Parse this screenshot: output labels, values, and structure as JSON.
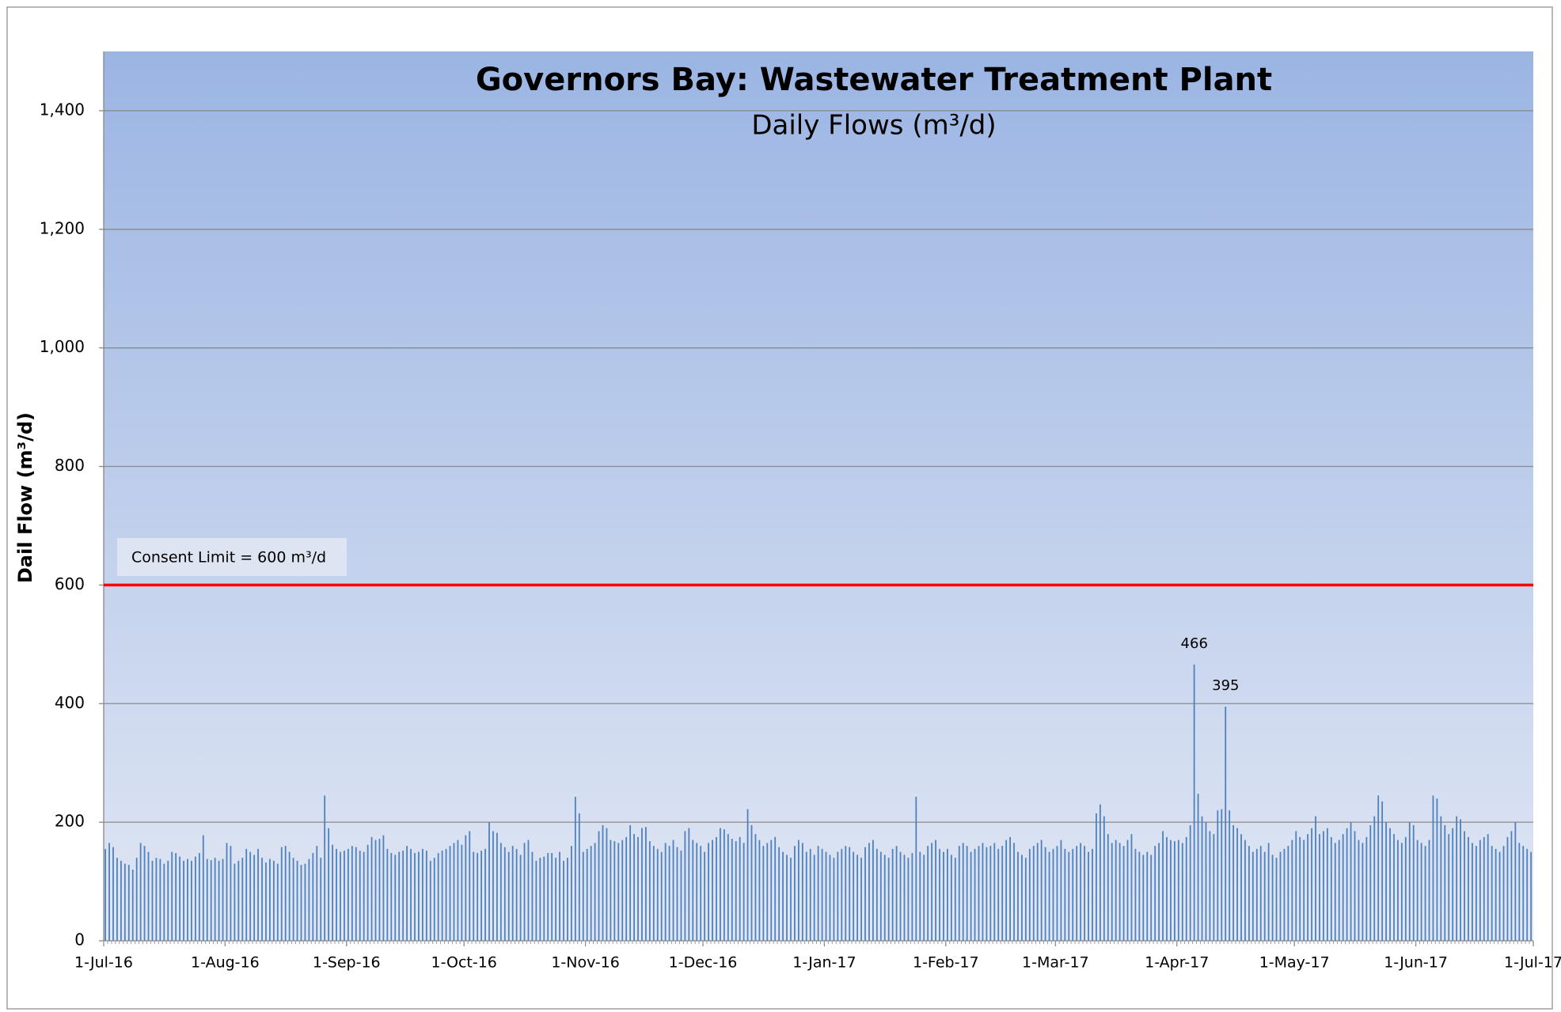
{
  "chart_data": {
    "type": "bar",
    "title": "Governors Bay: Wastewater Treatment Plant",
    "subtitle": "Daily Flows (m³/d)",
    "y_label": "Dail Flow (m³/d)",
    "color": "#4f81bd",
    "grid": true,
    "ylim": [
      0,
      1500
    ],
    "yticks": [
      0,
      200,
      400,
      600,
      800,
      {
        "value": 1000,
        "label": "1,000"
      },
      {
        "value": 1200,
        "label": "1,200"
      },
      {
        "value": 1400,
        "label": "1,400"
      }
    ],
    "xlim": [
      "2016-07-01",
      "2017-07-01"
    ],
    "xticks": [
      {
        "value": "2016-07-01",
        "label": "1-Jul-16"
      },
      {
        "value": "2016-08-01",
        "label": "1-Aug-16"
      },
      {
        "value": "2016-09-01",
        "label": "1-Sep-16"
      },
      {
        "value": "2016-10-01",
        "label": "1-Oct-16"
      },
      {
        "value": "2016-11-01",
        "label": "1-Nov-16"
      },
      {
        "value": "2016-12-01",
        "label": "1-Dec-16"
      },
      {
        "value": "2017-01-01",
        "label": "1-Jan-17"
      },
      {
        "value": "2017-02-01",
        "label": "1-Feb-17"
      },
      {
        "value": "2017-03-01",
        "label": "1-Mar-17"
      },
      {
        "value": "2017-04-01",
        "label": "1-Apr-17"
      },
      {
        "value": "2017-05-01",
        "label": "1-May-17"
      },
      {
        "value": "2017-06-01",
        "label": "1-Jun-17"
      },
      {
        "value": "2017-07-01",
        "label": "1-Jul-17"
      }
    ],
    "limit": {
      "value": 600,
      "label": "Consent Limit = 600 m³/d",
      "color": "#ff0000"
    },
    "x": [
      "2016-07-01",
      "2016-07-02",
      "2016-07-03",
      "2016-07-04",
      "2016-07-05",
      "2016-07-06",
      "2016-07-07",
      "2016-07-08",
      "2016-07-09",
      "2016-07-10",
      "2016-07-11",
      "2016-07-12",
      "2016-07-13",
      "2016-07-14",
      "2016-07-15",
      "2016-07-16",
      "2016-07-17",
      "2016-07-18",
      "2016-07-19",
      "2016-07-20",
      "2016-07-21",
      "2016-07-22",
      "2016-07-23",
      "2016-07-24",
      "2016-07-25",
      "2016-07-26",
      "2016-07-27",
      "2016-07-28",
      "2016-07-29",
      "2016-07-30",
      "2016-07-31",
      "2016-08-01",
      "2016-08-02",
      "2016-08-03",
      "2016-08-04",
      "2016-08-05",
      "2016-08-06",
      "2016-08-07",
      "2016-08-08",
      "2016-08-09",
      "2016-08-10",
      "2016-08-11",
      "2016-08-12",
      "2016-08-13",
      "2016-08-14",
      "2016-08-15",
      "2016-08-16",
      "2016-08-17",
      "2016-08-18",
      "2016-08-19",
      "2016-08-20",
      "2016-08-21",
      "2016-08-22",
      "2016-08-23",
      "2016-08-24",
      "2016-08-25",
      "2016-08-26",
      "2016-08-27",
      "2016-08-28",
      "2016-08-29",
      "2016-08-30",
      "2016-08-31",
      "2016-09-01",
      "2016-09-02",
      "2016-09-03",
      "2016-09-04",
      "2016-09-05",
      "2016-09-06",
      "2016-09-07",
      "2016-09-08",
      "2016-09-09",
      "2016-09-10",
      "2016-09-11",
      "2016-09-12",
      "2016-09-13",
      "2016-09-14",
      "2016-09-15",
      "2016-09-16",
      "2016-09-17",
      "2016-09-18",
      "2016-09-19",
      "2016-09-20",
      "2016-09-21",
      "2016-09-22",
      "2016-09-23",
      "2016-09-24",
      "2016-09-25",
      "2016-09-26",
      "2016-09-27",
      "2016-09-28",
      "2016-09-29",
      "2016-09-30",
      "2016-10-01",
      "2016-10-02",
      "2016-10-03",
      "2016-10-04",
      "2016-10-05",
      "2016-10-06",
      "2016-10-07",
      "2016-10-08",
      "2016-10-09",
      "2016-10-10",
      "2016-10-11",
      "2016-10-12",
      "2016-10-13",
      "2016-10-14",
      "2016-10-15",
      "2016-10-16",
      "2016-10-17",
      "2016-10-18",
      "2016-10-19",
      "2016-10-20",
      "2016-10-21",
      "2016-10-22",
      "2016-10-23",
      "2016-10-24",
      "2016-10-25",
      "2016-10-26",
      "2016-10-27",
      "2016-10-28",
      "2016-10-29",
      "2016-10-30",
      "2016-10-31",
      "2016-11-01",
      "2016-11-02",
      "2016-11-03",
      "2016-11-04",
      "2016-11-05",
      "2016-11-06",
      "2016-11-07",
      "2016-11-08",
      "2016-11-09",
      "2016-11-10",
      "2016-11-11",
      "2016-11-12",
      "2016-11-13",
      "2016-11-14",
      "2016-11-15",
      "2016-11-16",
      "2016-11-17",
      "2016-11-18",
      "2016-11-19",
      "2016-11-20",
      "2016-11-21",
      "2016-11-22",
      "2016-11-23",
      "2016-11-24",
      "2016-11-25",
      "2016-11-26",
      "2016-11-27",
      "2016-11-28",
      "2016-11-29",
      "2016-11-30",
      "2016-12-01",
      "2016-12-02",
      "2016-12-03",
      "2016-12-04",
      "2016-12-05",
      "2016-12-06",
      "2016-12-07",
      "2016-12-08",
      "2016-12-09",
      "2016-12-10",
      "2016-12-11",
      "2016-12-12",
      "2016-12-13",
      "2016-12-14",
      "2016-12-15",
      "2016-12-16",
      "2016-12-17",
      "2016-12-18",
      "2016-12-19",
      "2016-12-20",
      "2016-12-21",
      "2016-12-22",
      "2016-12-23",
      "2016-12-24",
      "2016-12-25",
      "2016-12-26",
      "2016-12-27",
      "2016-12-28",
      "2016-12-29",
      "2016-12-30",
      "2016-12-31",
      "2017-01-01",
      "2017-01-02",
      "2017-01-03",
      "2017-01-04",
      "2017-01-05",
      "2017-01-06",
      "2017-01-07",
      "2017-01-08",
      "2017-01-09",
      "2017-01-10",
      "2017-01-11",
      "2017-01-12",
      "2017-01-13",
      "2017-01-14",
      "2017-01-15",
      "2017-01-16",
      "2017-01-17",
      "2017-01-18",
      "2017-01-19",
      "2017-01-20",
      "2017-01-21",
      "2017-01-22",
      "2017-01-23",
      "2017-01-24",
      "2017-01-25",
      "2017-01-26",
      "2017-01-27",
      "2017-01-28",
      "2017-01-29",
      "2017-01-30",
      "2017-01-31",
      "2017-02-01",
      "2017-02-02",
      "2017-02-03",
      "2017-02-04",
      "2017-02-05",
      "2017-02-06",
      "2017-02-07",
      "2017-02-08",
      "2017-02-09",
      "2017-02-10",
      "2017-02-11",
      "2017-02-12",
      "2017-02-13",
      "2017-02-14",
      "2017-02-15",
      "2017-02-16",
      "2017-02-17",
      "2017-02-18",
      "2017-02-19",
      "2017-02-20",
      "2017-02-21",
      "2017-02-22",
      "2017-02-23",
      "2017-02-24",
      "2017-02-25",
      "2017-02-26",
      "2017-02-27",
      "2017-02-28",
      "2017-03-01",
      "2017-03-02",
      "2017-03-03",
      "2017-03-04",
      "2017-03-05",
      "2017-03-06",
      "2017-03-07",
      "2017-03-08",
      "2017-03-09",
      "2017-03-10",
      "2017-03-11",
      "2017-03-12",
      "2017-03-13",
      "2017-03-14",
      "2017-03-15",
      "2017-03-16",
      "2017-03-17",
      "2017-03-18",
      "2017-03-19",
      "2017-03-20",
      "2017-03-21",
      "2017-03-22",
      "2017-03-23",
      "2017-03-24",
      "2017-03-25",
      "2017-03-26",
      "2017-03-27",
      "2017-03-28",
      "2017-03-29",
      "2017-03-30",
      "2017-03-31",
      "2017-04-01",
      "2017-04-02",
      "2017-04-03",
      "2017-04-04",
      "2017-04-05",
      "2017-04-06",
      "2017-04-07",
      "2017-04-08",
      "2017-04-09",
      "2017-04-10",
      "2017-04-11",
      "2017-04-12",
      "2017-04-13",
      "2017-04-14",
      "2017-04-15",
      "2017-04-16",
      "2017-04-17",
      "2017-04-18",
      "2017-04-19",
      "2017-04-20",
      "2017-04-21",
      "2017-04-22",
      "2017-04-23",
      "2017-04-24",
      "2017-04-25",
      "2017-04-26",
      "2017-04-27",
      "2017-04-28",
      "2017-04-29",
      "2017-04-30",
      "2017-05-01",
      "2017-05-02",
      "2017-05-03",
      "2017-05-04",
      "2017-05-05",
      "2017-05-06",
      "2017-05-07",
      "2017-05-08",
      "2017-05-09",
      "2017-05-10",
      "2017-05-11",
      "2017-05-12",
      "2017-05-13",
      "2017-05-14",
      "2017-05-15",
      "2017-05-16",
      "2017-05-17",
      "2017-05-18",
      "2017-05-19",
      "2017-05-20",
      "2017-05-21",
      "2017-05-22",
      "2017-05-23",
      "2017-05-24",
      "2017-05-25",
      "2017-05-26",
      "2017-05-27",
      "2017-05-28",
      "2017-05-29",
      "2017-05-30",
      "2017-05-31",
      "2017-06-01",
      "2017-06-02",
      "2017-06-03",
      "2017-06-04",
      "2017-06-05",
      "2017-06-06",
      "2017-06-07",
      "2017-06-08",
      "2017-06-09",
      "2017-06-10",
      "2017-06-11",
      "2017-06-12",
      "2017-06-13",
      "2017-06-14",
      "2017-06-15",
      "2017-06-16",
      "2017-06-17",
      "2017-06-18",
      "2017-06-19",
      "2017-06-20",
      "2017-06-21",
      "2017-06-22",
      "2017-06-23",
      "2017-06-24",
      "2017-06-25",
      "2017-06-26",
      "2017-06-27",
      "2017-06-28",
      "2017-06-29",
      "2017-06-30"
    ],
    "values": [
      155,
      165,
      158,
      140,
      135,
      130,
      128,
      120,
      140,
      165,
      160,
      150,
      135,
      140,
      138,
      130,
      135,
      150,
      148,
      142,
      135,
      138,
      135,
      142,
      148,
      178,
      138,
      136,
      140,
      135,
      138,
      165,
      160,
      130,
      135,
      140,
      155,
      150,
      145,
      155,
      140,
      132,
      138,
      135,
      130,
      158,
      160,
      150,
      140,
      135,
      128,
      130,
      138,
      148,
      160,
      140,
      245,
      190,
      162,
      155,
      150,
      152,
      155,
      160,
      158,
      152,
      150,
      162,
      175,
      170,
      172,
      178,
      155,
      148,
      145,
      150,
      152,
      160,
      155,
      148,
      150,
      155,
      152,
      135,
      140,
      148,
      152,
      155,
      160,
      165,
      170,
      162,
      178,
      185,
      150,
      148,
      152,
      155,
      200,
      185,
      182,
      165,
      158,
      150,
      160,
      155,
      145,
      165,
      170,
      150,
      135,
      140,
      142,
      148,
      148,
      140,
      150,
      135,
      140,
      160,
      243,
      215,
      150,
      155,
      160,
      165,
      185,
      195,
      190,
      170,
      168,
      165,
      170,
      175,
      195,
      180,
      175,
      190,
      192,
      168,
      160,
      155,
      150,
      165,
      160,
      170,
      158,
      152,
      185,
      190,
      170,
      165,
      160,
      150,
      165,
      170,
      175,
      190,
      188,
      180,
      172,
      168,
      175,
      165,
      222,
      195,
      180,
      170,
      160,
      165,
      170,
      175,
      158,
      150,
      145,
      140,
      160,
      170,
      165,
      150,
      155,
      145,
      160,
      155,
      150,
      145,
      140,
      150,
      155,
      160,
      158,
      150,
      145,
      140,
      158,
      165,
      170,
      155,
      150,
      145,
      140,
      155,
      160,
      150,
      145,
      140,
      148,
      243,
      150,
      145,
      160,
      165,
      170,
      155,
      150,
      155,
      145,
      140,
      160,
      165,
      160,
      150,
      155,
      160,
      165,
      158,
      160,
      165,
      155,
      160,
      170,
      175,
      165,
      150,
      145,
      140,
      155,
      160,
      165,
      170,
      158,
      150,
      155,
      160,
      170,
      155,
      150,
      155,
      160,
      165,
      160,
      150,
      155,
      215,
      230,
      210,
      180,
      165,
      170,
      165,
      160,
      170,
      180,
      155,
      150,
      145,
      150,
      145,
      160,
      165,
      185,
      175,
      170,
      168,
      170,
      165,
      175,
      195,
      466,
      248,
      210,
      200,
      185,
      180,
      220,
      222,
      395,
      220,
      195,
      190,
      180,
      170,
      160,
      150,
      155,
      160,
      150,
      165,
      145,
      140,
      150,
      155,
      160,
      170,
      185,
      175,
      170,
      180,
      190,
      210,
      180,
      185,
      190,
      175,
      165,
      170,
      180,
      190,
      200,
      185,
      170,
      165,
      175,
      195,
      210,
      245,
      235,
      200,
      190,
      180,
      170,
      165,
      175,
      200,
      195,
      170,
      165,
      160,
      170,
      245,
      240,
      210,
      195,
      180,
      190,
      210,
      205,
      185,
      175,
      165,
      160,
      170,
      175,
      180,
      160,
      155,
      150,
      160,
      175,
      185,
      200,
      165,
      160,
      155,
      150
    ],
    "value_labels": [
      null,
      null,
      null,
      null,
      null,
      null,
      null,
      null,
      null,
      null,
      null,
      null,
      null,
      null,
      null,
      null,
      null,
      null,
      null,
      null,
      null,
      null,
      null,
      null,
      null,
      null,
      null,
      null,
      null,
      null,
      null,
      null,
      null,
      null,
      null,
      null,
      null,
      null,
      null,
      null,
      null,
      null,
      null,
      null,
      null,
      null,
      null,
      null,
      null,
      null,
      null,
      null,
      null,
      null,
      null,
      null,
      null,
      null,
      null,
      null,
      null,
      null,
      null,
      null,
      null,
      null,
      null,
      null,
      null,
      null,
      null,
      null,
      null,
      null,
      null,
      null,
      null,
      null,
      null,
      null,
      null,
      null,
      null,
      null,
      null,
      null,
      null,
      null,
      null,
      null,
      null,
      null,
      null,
      null,
      null,
      null,
      null,
      null,
      null,
      null,
      null,
      null,
      null,
      null,
      null,
      null,
      null,
      null,
      null,
      null,
      null,
      null,
      null,
      null,
      null,
      null,
      null,
      null,
      null,
      null,
      null,
      null,
      null,
      null,
      null,
      null,
      null,
      null,
      null,
      null,
      null,
      null,
      null,
      null,
      null,
      null,
      null,
      null,
      null,
      null,
      null,
      null,
      null,
      null,
      null,
      null,
      null,
      null,
      null,
      null,
      null,
      null,
      null,
      null,
      null,
      null,
      null,
      null,
      null,
      null,
      null,
      null,
      null,
      null,
      null,
      null,
      null,
      null,
      null,
      null,
      null,
      null,
      null,
      null,
      null,
      null,
      null,
      null,
      null,
      null,
      null,
      null,
      null,
      null,
      null,
      null,
      null,
      null,
      null,
      null,
      null,
      null,
      null,
      null,
      null,
      null,
      null,
      null,
      null,
      null,
      null,
      null,
      null,
      null,
      null,
      null,
      null,
      null,
      null,
      null,
      null,
      null,
      null,
      null,
      null,
      null,
      null,
      null,
      null,
      null,
      null,
      null,
      null,
      null,
      null,
      null,
      null,
      null,
      null,
      null,
      null,
      null,
      null,
      null,
      null,
      null,
      null,
      null,
      null,
      null,
      null,
      null,
      null,
      null,
      null,
      null,
      null,
      null,
      null,
      null,
      null,
      null,
      null,
      null,
      null,
      null,
      null,
      null,
      null,
      null,
      null,
      null,
      null,
      null,
      null,
      null,
      null,
      null,
      null,
      null,
      null,
      null,
      null,
      null,
      null,
      null,
      null,
      null,
      "466",
      null,
      null,
      null,
      null,
      null,
      null,
      null,
      "395",
      null,
      null,
      null,
      null,
      null,
      null,
      null,
      null,
      null,
      null,
      null,
      null,
      null,
      null,
      null,
      null,
      null,
      null,
      null,
      null,
      null,
      null,
      null,
      null,
      null,
      null,
      null,
      null,
      null,
      null,
      null,
      null,
      null,
      null,
      null,
      null,
      null,
      null,
      null,
      null,
      null,
      null,
      null,
      null,
      null,
      null,
      null,
      null,
      null,
      null,
      null,
      null,
      null,
      null,
      null,
      null,
      null,
      null,
      null,
      null,
      null,
      null,
      null,
      null,
      null,
      null,
      null,
      null,
      null,
      null,
      null,
      null,
      null,
      null,
      null,
      null,
      null,
      null
    ]
  }
}
